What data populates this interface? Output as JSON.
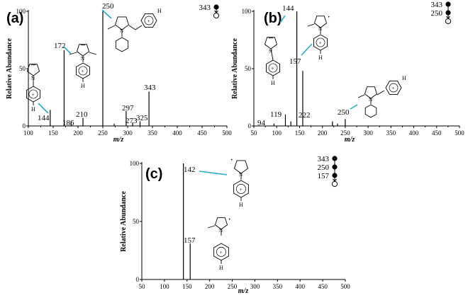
{
  "chart_data": [
    {
      "type": "bar",
      "panel_label": "(a)",
      "xlabel": "m/z",
      "ylabel": "Relative Abundance",
      "xlim": [
        100,
        500
      ],
      "ylim": [
        0,
        100
      ],
      "x_ticks": [
        100,
        150,
        200,
        250,
        300,
        350,
        400,
        450,
        500
      ],
      "y_ticks": [
        0,
        50,
        100
      ],
      "peaks": [
        {
          "mz": 144,
          "y": 14,
          "label": "144"
        },
        {
          "mz": 172,
          "y": 66,
          "label": "172"
        },
        {
          "mz": 186,
          "y": 4,
          "label": "186"
        },
        {
          "mz": 210,
          "y": 7,
          "label": "210"
        },
        {
          "mz": 250,
          "y": 100,
          "label": "250"
        },
        {
          "mz": 273,
          "y": 2,
          "label": "273"
        },
        {
          "mz": 297,
          "y": 13,
          "label": "297"
        },
        {
          "mz": 310,
          "y": 3,
          "label": ""
        },
        {
          "mz": 325,
          "y": 4,
          "label": "325"
        },
        {
          "mz": 343,
          "y": 30,
          "label": "343"
        }
      ],
      "precursor_chain": [
        "343"
      ]
    },
    {
      "type": "bar",
      "panel_label": "(b)",
      "xlabel": "m/z",
      "ylabel": "Relative Abundance",
      "xlim": [
        50,
        500
      ],
      "ylim": [
        0,
        100
      ],
      "x_ticks": [
        50,
        100,
        150,
        200,
        250,
        300,
        350,
        400,
        450,
        500
      ],
      "y_ticks": [
        0,
        50,
        100
      ],
      "peaks": [
        {
          "mz": 94,
          "y": 2,
          "label": "94"
        },
        {
          "mz": 119,
          "y": 10,
          "label": "119"
        },
        {
          "mz": 131,
          "y": 4,
          "label": ""
        },
        {
          "mz": 144,
          "y": 100,
          "label": "144"
        },
        {
          "mz": 157,
          "y": 48,
          "label": "157"
        },
        {
          "mz": 222,
          "y": 4,
          "label": "222"
        },
        {
          "mz": 233,
          "y": 2,
          "label": ""
        },
        {
          "mz": 250,
          "y": 6,
          "label": "250"
        }
      ],
      "precursor_chain": [
        "343",
        "250"
      ]
    },
    {
      "type": "bar",
      "panel_label": "(c)",
      "xlabel": "m/z",
      "ylabel": "Relative Abundance",
      "xlim": [
        50,
        500
      ],
      "ylim": [
        0,
        100
      ],
      "x_ticks": [
        50,
        100,
        150,
        200,
        250,
        300,
        350,
        400,
        450,
        500
      ],
      "y_ticks": [
        0,
        50,
        100
      ],
      "peaks": [
        {
          "mz": 142,
          "y": 100,
          "label": "142"
        },
        {
          "mz": 157,
          "y": 31,
          "label": "157"
        }
      ],
      "precursor_chain": [
        "343",
        "250",
        "157"
      ]
    }
  ],
  "annotation_labels": {
    "plus": "+",
    "hydrogen": "H",
    "nitrogen": "N",
    "radical": "·"
  },
  "colors": {
    "axis": "#000000",
    "leader_line": "#2aa9c9"
  }
}
